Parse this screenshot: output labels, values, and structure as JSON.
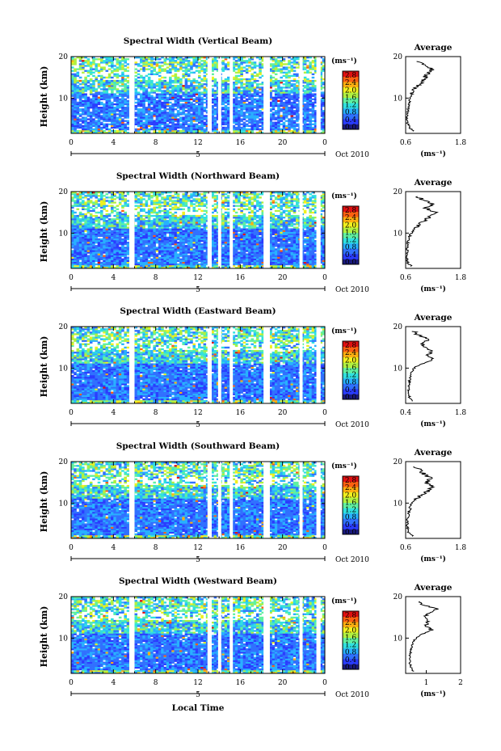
{
  "figure": {
    "xlabel": "Local Time",
    "date_label": "Oct 2010",
    "day_label": "5",
    "colorbar_unit": "(ms⁻¹)",
    "colorbar_ticks": [
      "0.0",
      "0.4",
      "0.8",
      "1.2",
      "1.6",
      "2.0",
      "2.4",
      "2.8"
    ],
    "colorbar_colors": [
      "#1a1a80",
      "#2a3cff",
      "#3070ff",
      "#28b0ff",
      "#30e0e0",
      "#60f0a0",
      "#b0f040",
      "#f0f020",
      "#ffb010",
      "#ff6010",
      "#e01010"
    ],
    "average_title": "Average",
    "average_xlabel": "(ms⁻¹)"
  },
  "chart_data": [
    {
      "type": "heatmap",
      "title": "Spectral Width (Vertical Beam)",
      "ylabel": "Height (km)",
      "x_ticks": [
        "0",
        "4",
        "8",
        "12",
        "16",
        "20",
        "0"
      ],
      "y_ticks": [
        "10",
        "20"
      ],
      "xlim": [
        0,
        24
      ],
      "ylim": [
        1.5,
        20
      ],
      "gaps": [
        [
          5.5,
          6.0
        ],
        [
          12.9,
          13.3
        ],
        [
          13.9,
          14.2
        ],
        [
          15.0,
          15.3
        ],
        [
          18.2,
          18.8
        ],
        [
          21.6,
          21.9
        ],
        [
          23.2,
          23.6
        ]
      ],
      "average_profile": {
        "xlim": [
          0.6,
          1.8
        ],
        "x_ticks": [
          "0.6",
          "1.8"
        ],
        "y_ticks": [
          "10",
          "20"
        ],
        "height_km": [
          2,
          3,
          4,
          5,
          6,
          7,
          8,
          9,
          10,
          11,
          12,
          13,
          14,
          15,
          16,
          17,
          18,
          19
        ],
        "width_ms": [
          0.78,
          0.68,
          0.64,
          0.62,
          0.63,
          0.65,
          0.66,
          0.68,
          0.7,
          0.74,
          0.8,
          0.88,
          0.95,
          1.02,
          1.1,
          1.18,
          1.02,
          0.85
        ]
      }
    },
    {
      "type": "heatmap",
      "title": "Spectral Width (Northward Beam)",
      "ylabel": "Height (km)",
      "x_ticks": [
        "0",
        "4",
        "8",
        "12",
        "16",
        "20",
        "0"
      ],
      "y_ticks": [
        "10",
        "20"
      ],
      "xlim": [
        0,
        24
      ],
      "ylim": [
        1.5,
        20
      ],
      "gaps": [
        [
          5.5,
          6.0
        ],
        [
          12.9,
          13.3
        ],
        [
          13.9,
          14.2
        ],
        [
          15.0,
          15.3
        ],
        [
          18.2,
          18.8
        ],
        [
          21.6,
          21.9
        ],
        [
          23.2,
          23.6
        ]
      ],
      "average_profile": {
        "xlim": [
          0.6,
          1.8
        ],
        "x_ticks": [
          "0.6",
          "1.8"
        ],
        "y_ticks": [
          "10",
          "20"
        ],
        "height_km": [
          2,
          3,
          4,
          5,
          6,
          7,
          8,
          9,
          10,
          11,
          12,
          13,
          14,
          15,
          16,
          17,
          18,
          19
        ],
        "width_ms": [
          0.72,
          0.64,
          0.62,
          0.62,
          0.63,
          0.64,
          0.66,
          0.68,
          0.72,
          0.78,
          0.88,
          1.02,
          1.12,
          1.25,
          1.05,
          1.2,
          0.98,
          0.82
        ]
      }
    },
    {
      "type": "heatmap",
      "title": "Spectral Width (Eastward Beam)",
      "ylabel": "Height (km)",
      "x_ticks": [
        "0",
        "4",
        "8",
        "12",
        "16",
        "20",
        "0"
      ],
      "y_ticks": [
        "10",
        "20"
      ],
      "xlim": [
        0,
        24
      ],
      "ylim": [
        1.5,
        20
      ],
      "gaps": [
        [
          5.5,
          6.0
        ],
        [
          12.9,
          13.3
        ],
        [
          13.9,
          14.2
        ],
        [
          15.0,
          15.3
        ],
        [
          18.2,
          18.8
        ],
        [
          21.6,
          21.9
        ],
        [
          23.2,
          23.6
        ]
      ],
      "average_profile": {
        "xlim": [
          0.4,
          1.8
        ],
        "x_ticks": [
          "0.4",
          "1.8"
        ],
        "y_ticks": [
          "10",
          "20"
        ],
        "height_km": [
          2,
          3,
          4,
          5,
          6,
          7,
          8,
          9,
          10,
          11,
          12,
          13,
          14,
          15,
          16,
          17,
          18,
          19
        ],
        "width_ms": [
          0.55,
          0.5,
          0.48,
          0.48,
          0.49,
          0.5,
          0.52,
          0.55,
          0.62,
          0.78,
          1.1,
          0.95,
          1.05,
          0.9,
          0.8,
          1.0,
          0.7,
          0.6
        ]
      }
    },
    {
      "type": "heatmap",
      "title": "Spectral Width (Southward Beam)",
      "ylabel": "Height (km)",
      "x_ticks": [
        "0",
        "4",
        "8",
        "12",
        "16",
        "20",
        "0"
      ],
      "y_ticks": [
        "10",
        "20"
      ],
      "xlim": [
        0,
        24
      ],
      "ylim": [
        1.5,
        20
      ],
      "gaps": [
        [
          5.5,
          6.0
        ],
        [
          12.9,
          13.3
        ],
        [
          13.9,
          14.2
        ],
        [
          15.0,
          15.3
        ],
        [
          18.2,
          18.8
        ],
        [
          21.6,
          21.9
        ],
        [
          23.2,
          23.6
        ]
      ],
      "average_profile": {
        "xlim": [
          0.6,
          1.8
        ],
        "x_ticks": [
          "0.6",
          "1.8"
        ],
        "y_ticks": [
          "10",
          "20"
        ],
        "height_km": [
          2,
          3,
          4,
          5,
          6,
          7,
          8,
          9,
          10,
          11,
          12,
          13,
          14,
          15,
          16,
          17,
          18,
          19
        ],
        "width_ms": [
          0.75,
          0.66,
          0.64,
          0.63,
          0.64,
          0.66,
          0.68,
          0.7,
          0.74,
          0.82,
          0.95,
          1.1,
          1.18,
          1.05,
          1.15,
          1.0,
          0.9,
          0.8
        ]
      }
    },
    {
      "type": "heatmap",
      "title": "Spectral Width (Westward Beam)",
      "ylabel": "Height (km)",
      "x_ticks": [
        "0",
        "4",
        "8",
        "12",
        "16",
        "20",
        "0"
      ],
      "y_ticks": [
        "10",
        "20"
      ],
      "xlim": [
        0,
        24
      ],
      "ylim": [
        1.5,
        20
      ],
      "gaps": [
        [
          5.5,
          6.0
        ],
        [
          12.9,
          13.3
        ],
        [
          13.9,
          14.2
        ],
        [
          15.0,
          15.3
        ],
        [
          18.2,
          18.8
        ],
        [
          21.6,
          21.9
        ],
        [
          23.2,
          23.6
        ]
      ],
      "average_profile": {
        "xlim": [
          0.4,
          2.0
        ],
        "x_ticks": [
          "1",
          "2"
        ],
        "y_ticks": [
          "10",
          "20"
        ],
        "height_km": [
          2,
          3,
          4,
          5,
          6,
          7,
          8,
          9,
          10,
          11,
          12,
          13,
          14,
          15,
          16,
          17,
          18,
          19
        ],
        "width_ms": [
          0.62,
          0.55,
          0.52,
          0.52,
          0.53,
          0.55,
          0.58,
          0.62,
          0.7,
          0.88,
          1.15,
          1.0,
          1.05,
          0.95,
          1.08,
          1.3,
          0.9,
          0.75
        ]
      }
    }
  ]
}
